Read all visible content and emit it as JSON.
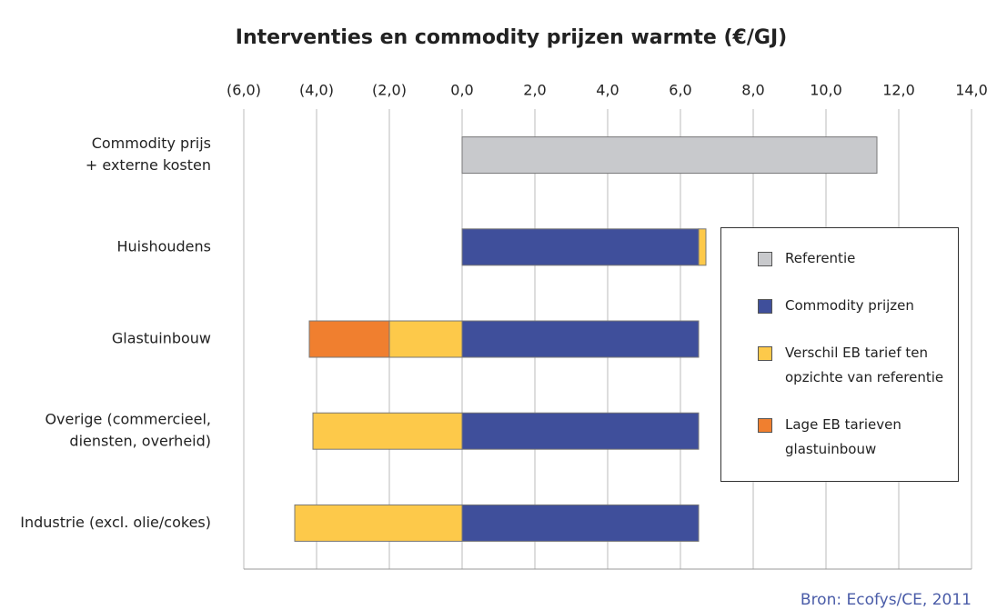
{
  "chart_data": {
    "type": "stacked-hbar",
    "title": "Interventies en commodity prijzen warmte (€/GJ)",
    "source": "Bron: Ecofys/CE, 2011",
    "categories": [
      [
        "Commodity prijs",
        "+ externe kosten"
      ],
      [
        "Huishoudens"
      ],
      [
        "Glastuinbouw"
      ],
      [
        "Overige (commercieel,",
        "diensten, overheid)"
      ],
      [
        "Industrie (excl. olie/cokes)"
      ]
    ],
    "series": [
      {
        "name": "Referentie",
        "color": "#c8c9cc",
        "values": [
          11.4,
          null,
          null,
          null,
          null
        ]
      },
      {
        "name": "Commodity prijzen",
        "color": "#3f4f9b",
        "values": [
          null,
          6.5,
          6.5,
          6.5,
          6.5
        ]
      },
      {
        "name": "Verschil EB tarief ten opzichte van referentie",
        "color": "#fdc94a",
        "values": [
          null,
          0.2,
          -2.0,
          -4.1,
          -4.6
        ]
      },
      {
        "name": "Lage EB tarieven glastuinbouw",
        "color": "#f07f2f",
        "values": [
          null,
          null,
          -2.2,
          null,
          null
        ]
      }
    ],
    "xlim": [
      -6,
      14
    ],
    "xticks": [
      {
        "value": -6,
        "label": "(6,0)"
      },
      {
        "value": -4,
        "label": "(4,0)"
      },
      {
        "value": -2,
        "label": "(2,0)"
      },
      {
        "value": 0,
        "label": "0,0"
      },
      {
        "value": 2,
        "label": "2,0"
      },
      {
        "value": 4,
        "label": "4,0"
      },
      {
        "value": 6,
        "label": "6,0"
      },
      {
        "value": 8,
        "label": "8,0"
      },
      {
        "value": 10,
        "label": "10,0"
      },
      {
        "value": 12,
        "label": "12,0"
      },
      {
        "value": 14,
        "label": "14,0"
      }
    ],
    "grid": true
  }
}
